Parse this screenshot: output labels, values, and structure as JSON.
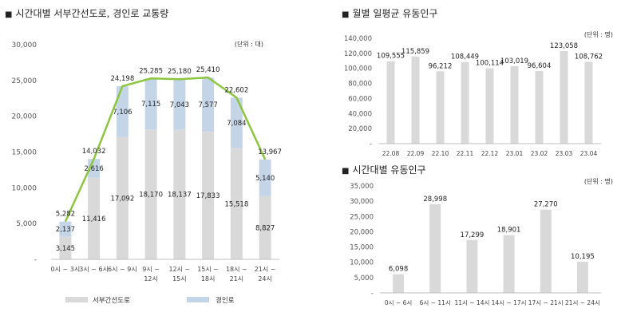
{
  "chart_data": [
    {
      "type": "bar",
      "title": "시간대별 서부간선도로, 경인로 교통량",
      "unit": "(단위 : 대)",
      "stacked": true,
      "categories": [
        "0시 ~ 3시",
        "3시 ~ 6시",
        "6시 ~ 9시",
        "9시 ~ 12시",
        "12시 ~ 15시",
        "15시 ~ 18시",
        "18시 ~ 21시",
        "21시 ~ 24시"
      ],
      "category_lines": [
        [
          "0시 ~ 3시"
        ],
        [
          "3시 ~ 6시"
        ],
        [
          "6시 ~ 9시"
        ],
        [
          "9시 ~",
          "12시"
        ],
        [
          "12시 ~",
          "15시"
        ],
        [
          "15시 ~",
          "18시"
        ],
        [
          "18시 ~",
          "21시"
        ],
        [
          "21시 ~",
          "24시"
        ]
      ],
      "series": [
        {
          "name": "서부간선도로",
          "values": [
            3145,
            11416,
            17092,
            18170,
            18137,
            17833,
            15518,
            8827
          ],
          "color": "#d9d9d9"
        },
        {
          "name": "경인로",
          "values": [
            2137,
            2616,
            7106,
            7115,
            7043,
            7577,
            7084,
            5140
          ],
          "color": "#c5d5e8"
        }
      ],
      "totals": [
        5282,
        14032,
        24198,
        25285,
        25180,
        25410,
        22602,
        13967
      ],
      "total_line_color": "#8cc63f",
      "yticks": [
        "-",
        "5,000",
        "10,000",
        "15,000",
        "20,000",
        "25,000",
        "30,000"
      ],
      "ylim": [
        0,
        30000
      ],
      "legend_position": "bottom"
    },
    {
      "type": "bar",
      "title": "월별 일평균 유동인구",
      "unit": "(단위 : 명)",
      "categories": [
        "22.08",
        "22.09",
        "22.10",
        "22.11",
        "22.12",
        "23.01",
        "23.02",
        "23.03",
        "23.04"
      ],
      "values": [
        109555,
        115859,
        96212,
        108449,
        100114,
        103019,
        96604,
        123058,
        108762
      ],
      "yticks": [
        "-",
        "20,000",
        "40,000",
        "60,000",
        "80,000",
        "100,000",
        "120,000",
        "140,000"
      ],
      "ylim": [
        0,
        140000
      ],
      "color": "#d9d9d9"
    },
    {
      "type": "bar",
      "title": "시간대별 유동인구",
      "unit": "(단위 : 명)",
      "categories": [
        "0시 ~ 6시",
        "6시 ~ 11시",
        "11시 ~ 14시",
        "14시 ~ 17시",
        "17시 ~ 21시",
        "21시 ~ 24시"
      ],
      "values": [
        6098,
        28998,
        17299,
        18901,
        27270,
        10195
      ],
      "yticks": [
        "-",
        "5,000",
        "10,000",
        "15,000",
        "20,000",
        "25,000",
        "30,000",
        "35,000"
      ],
      "ylim": [
        0,
        35000
      ],
      "color": "#d9d9d9"
    }
  ]
}
